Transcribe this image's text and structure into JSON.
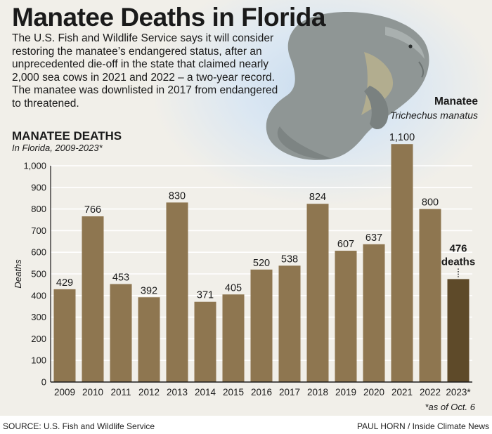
{
  "title": "Manatee Deaths in Florida",
  "intro": "The U.S. Fish and Wildlife Service says it will consider restoring the manatee’s endangered status, after an unprecedented die-off in the state that claimed nearly 2,000 sea cows in 2021 and 2022 – a two-year record. The manatee was downlisted in 2017 from endangered to threatened.",
  "species": {
    "name": "Manatee",
    "scientific": "Trichechus manatus"
  },
  "footnote": "*as of Oct. 6",
  "source": "SOURCE: U.S. Fish and Wildlife Service",
  "credit": "PAUL HORN / Inside Climate News",
  "colors": {
    "bar": "#8e7650",
    "highlight_bar": "#5e4a29",
    "background": "#f1efe9",
    "sky": "#cfe0f0",
    "manatee": "#8f9695"
  },
  "chart_data": {
    "type": "bar",
    "title": "MANATEE DEATHS",
    "subtitle": "In Florida, 2009-2023*",
    "ylabel": "Deaths",
    "xlabel": "",
    "ylim": [
      0,
      1000
    ],
    "yticks": [
      0,
      100,
      200,
      300,
      400,
      500,
      600,
      700,
      800,
      900,
      1000
    ],
    "ytick_labels": [
      "0",
      "100",
      "200",
      "300",
      "400",
      "500",
      "600",
      "700",
      "800",
      "900",
      "1,000"
    ],
    "grid": true,
    "categories": [
      "2009",
      "2010",
      "2011",
      "2012",
      "2013",
      "2014",
      "2015",
      "2016",
      "2017",
      "2018",
      "2019",
      "2020",
      "2021",
      "2022",
      "2023*"
    ],
    "values": [
      429,
      766,
      453,
      392,
      830,
      371,
      405,
      520,
      538,
      824,
      607,
      637,
      1100,
      800,
      476
    ],
    "value_labels": [
      "429",
      "766",
      "453",
      "392",
      "830",
      "371",
      "405",
      "520",
      "538",
      "824",
      "607",
      "637",
      "1,100",
      "800",
      ""
    ],
    "highlight": {
      "index": 14,
      "value_label": "476",
      "unit_label": "deaths"
    }
  }
}
